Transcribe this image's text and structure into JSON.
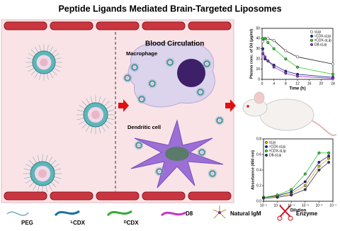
{
  "title": "Peptide Ligands Mediated Brain-Targeted Liposomes",
  "labels": {
    "blood": "Blood Circulation",
    "macrophage": "Macrophage",
    "dendritic": "Dendritic cell"
  },
  "legend": [
    "PEG",
    "ᴸCDX",
    "ᴰCDX",
    "D8",
    "Natural IgM",
    "Enzyme"
  ],
  "chart_data": [
    {
      "type": "line",
      "x_label": "Time (h)",
      "y_label": "Plasma conc. of DiI (μg/ml)",
      "legend": "upper right",
      "x": [
        0.25,
        1,
        2,
        4,
        8,
        12,
        24
      ],
      "xlim": [
        0,
        24
      ],
      "xticks": [
        0,
        4,
        8,
        12,
        16,
        20,
        24
      ],
      "ylim": [
        0,
        50
      ],
      "yticks": [
        0,
        10,
        20,
        30,
        40,
        50
      ],
      "series": [
        {
          "name": "sLip",
          "color": "#ffffff",
          "values": [
            37,
            40,
            40,
            38,
            28,
            22,
            15
          ]
        },
        {
          "name": "ᴸCDX-sLip",
          "color": "#1f2a8c",
          "values": [
            30,
            20,
            18,
            14,
            8,
            5,
            2
          ]
        },
        {
          "name": "ᴰCDX-sLip",
          "color": "#33cc33",
          "values": [
            40,
            40,
            36,
            30,
            20,
            12,
            5
          ]
        },
        {
          "name": "D8-sLip",
          "color": "#9933cc",
          "values": [
            25,
            22,
            18,
            12,
            6,
            3,
            1
          ]
        }
      ]
    },
    {
      "type": "line",
      "log_x": true,
      "x_label": "Dilution",
      "y_label": "Absorbance (450 nm)",
      "legend": "upper left",
      "x": [
        1e-06,
        1e-05,
        0.0001,
        0.001,
        0.01,
        0.05
      ],
      "xlim": [
        1e-06,
        0.1
      ],
      "xticks": [
        {
          "value": 1e-06,
          "label": "10⁻⁶"
        },
        {
          "value": 1e-05,
          "label": "10⁻⁵"
        },
        {
          "value": 0.0001,
          "label": "10⁻⁴"
        },
        {
          "value": 0.001,
          "label": "10⁻³"
        },
        {
          "value": 0.01,
          "label": "10⁻²"
        },
        {
          "value": 0.1,
          "label": "10⁻¹"
        }
      ],
      "ylim": [
        0,
        0.8
      ],
      "yticks": [
        {
          "value": 0,
          "label": "0.0"
        },
        0.2,
        0.4,
        0.6,
        0.8
      ],
      "series": [
        {
          "name": "sLip",
          "color": "#d4b000",
          "values": [
            0.05,
            0.06,
            0.1,
            0.2,
            0.45,
            0.55
          ]
        },
        {
          "name": "ᴸCDX-sLip",
          "color": "#1f2a8c",
          "values": [
            0.05,
            0.07,
            0.12,
            0.25,
            0.5,
            0.58
          ]
        },
        {
          "name": "ᴰCDX-sLip",
          "color": "#33cc33",
          "values": [
            0.05,
            0.08,
            0.15,
            0.35,
            0.62,
            0.62
          ]
        },
        {
          "name": "D8-sLip",
          "color": "#333366",
          "values": [
            0.04,
            0.05,
            0.08,
            0.15,
            0.4,
            0.5
          ]
        }
      ]
    }
  ]
}
